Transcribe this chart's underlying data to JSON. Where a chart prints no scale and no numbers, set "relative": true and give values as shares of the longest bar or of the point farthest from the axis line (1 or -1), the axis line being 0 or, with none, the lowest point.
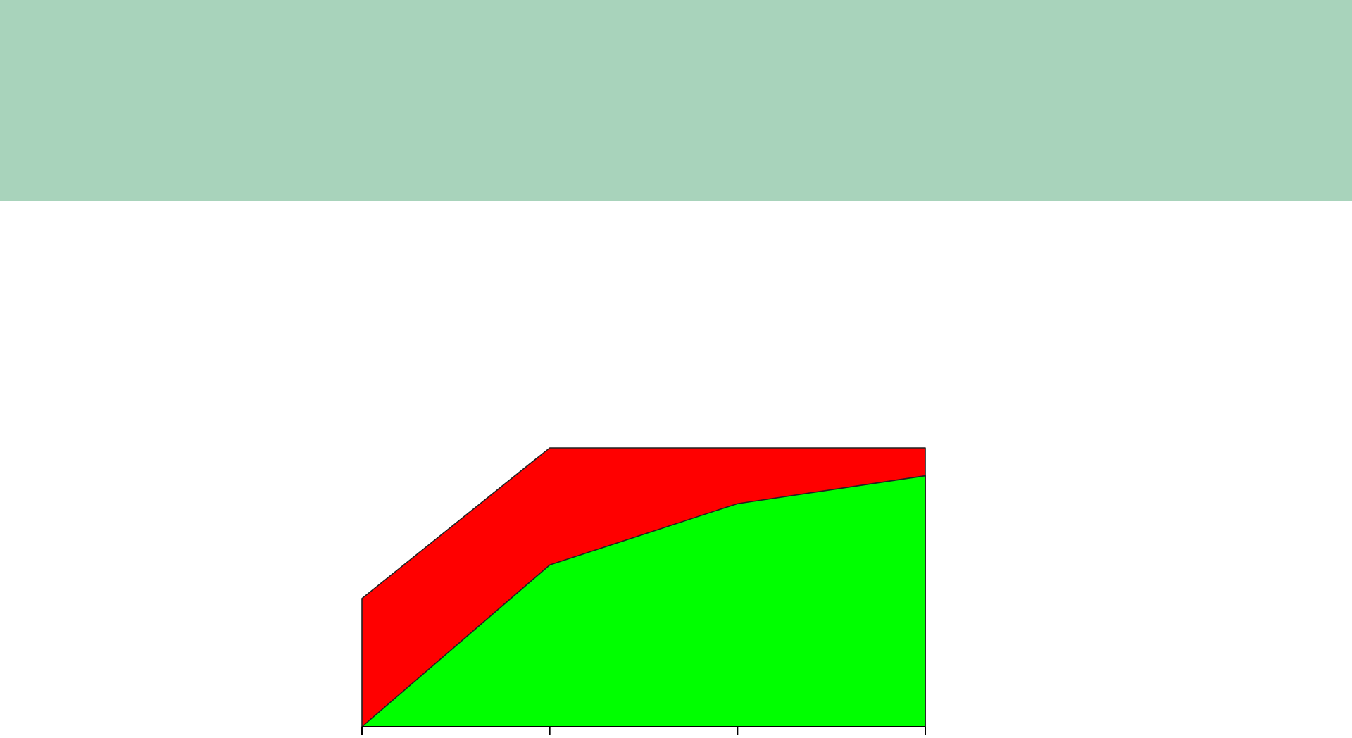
{
  "chart_data": {
    "type": "area",
    "relative": true,
    "categories": [
      null,
      null,
      null,
      null
    ],
    "series": [
      {
        "color": "#ff0000",
        "values": [
          0.46,
          1,
          1,
          1
        ]
      },
      {
        "color": "#00ff00",
        "values": [
          0,
          0.58,
          0.8,
          0.9
        ]
      }
    ]
  }
}
